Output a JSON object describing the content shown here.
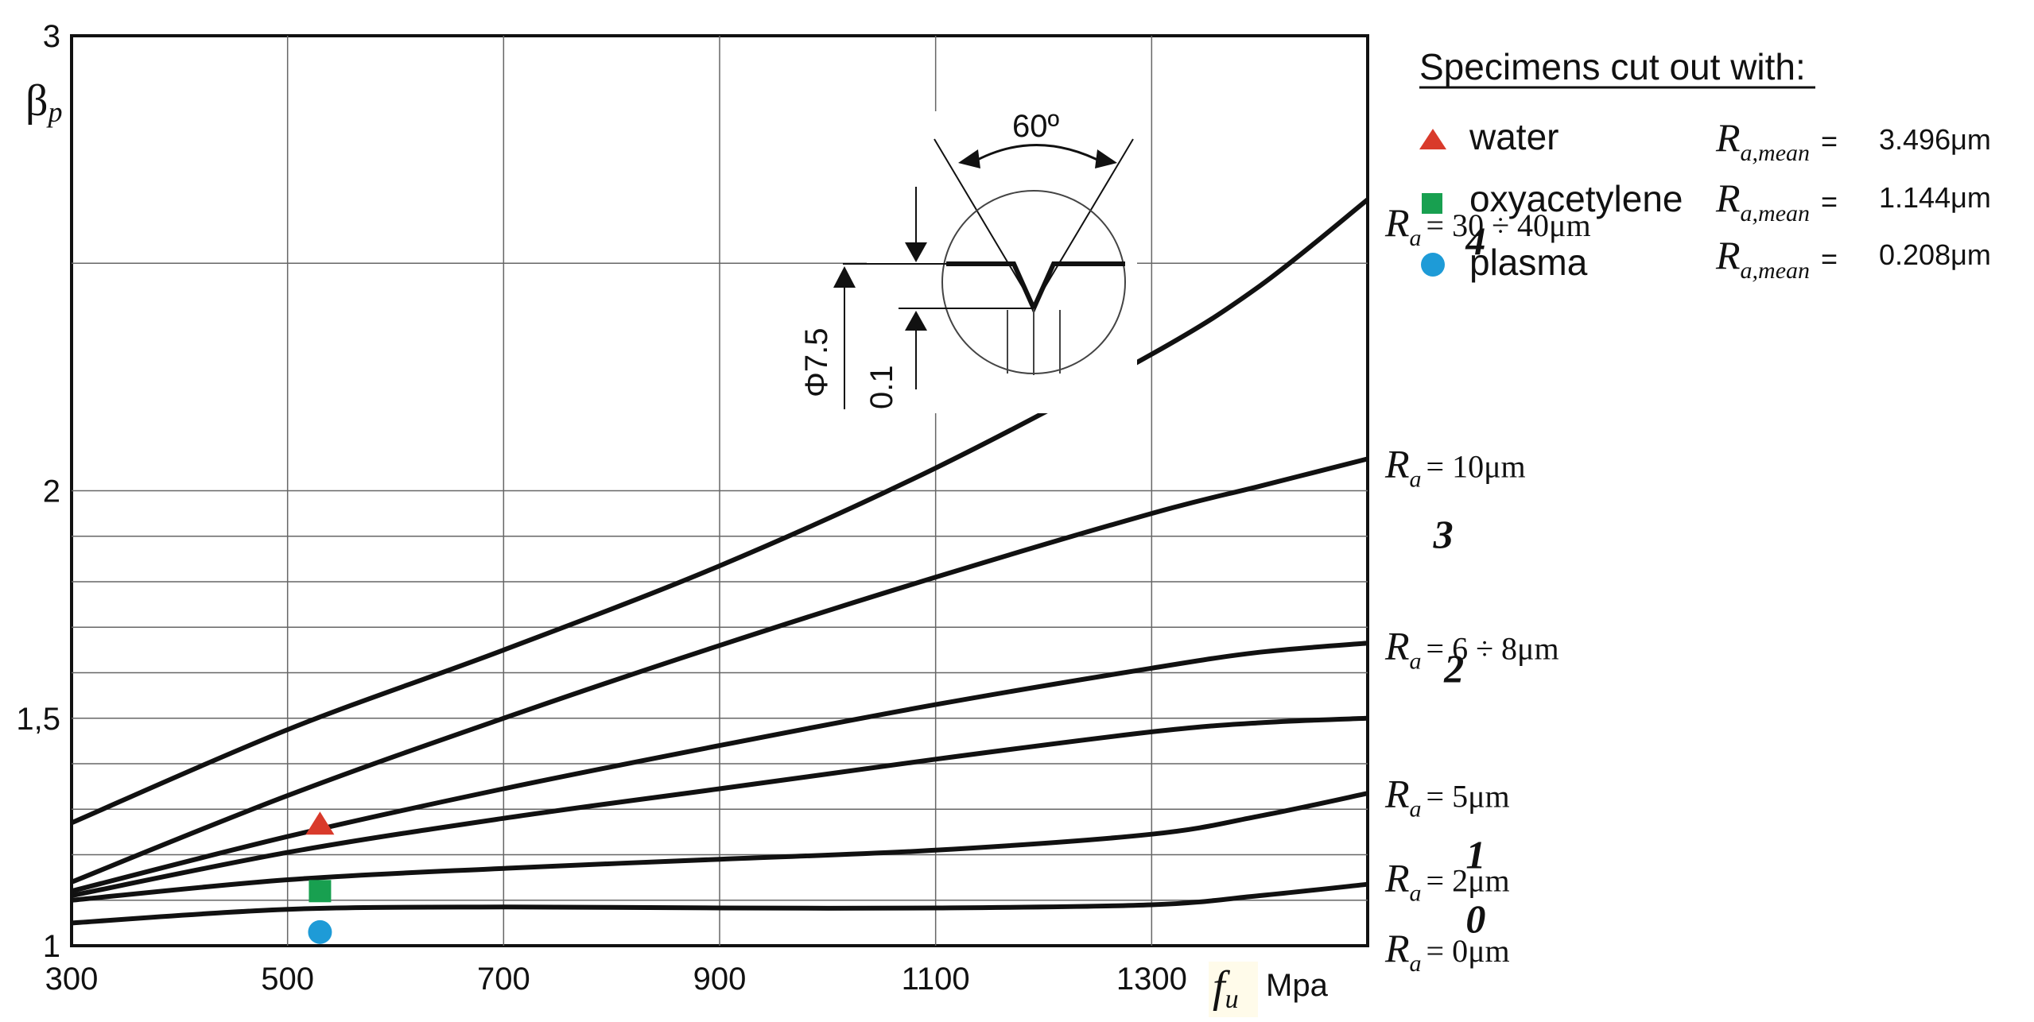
{
  "chart_data": {
    "type": "line",
    "title": "",
    "xlabel": "f_u Mpa",
    "xlabel_symbol": "f",
    "xlabel_sub": "u",
    "xlabel_unit": "Mpa",
    "ylabel": "β_p",
    "ylabel_symbol": "β",
    "ylabel_sub": "p",
    "xlim": [
      300,
      1500
    ],
    "ylim": [
      1,
      3
    ],
    "x_ticks": [
      "300",
      "500",
      "700",
      "900",
      "1100",
      "1300"
    ],
    "y_ticks": [
      {
        "v": 1,
        "label": "1"
      },
      {
        "v": 1.5,
        "label": "1,5"
      },
      {
        "v": 2,
        "label": "2"
      },
      {
        "v": 3,
        "label": "3"
      }
    ],
    "series": [
      {
        "name": "0",
        "label_value": "= 0μm",
        "x": [
          300,
          500,
          700,
          900,
          1100,
          1300,
          1400,
          1500
        ],
        "y": [
          1.05,
          1.08,
          1.085,
          1.083,
          1.083,
          1.09,
          1.11,
          1.135
        ]
      },
      {
        "name": "1",
        "label_value": "= 2μm",
        "x": [
          300,
          500,
          700,
          900,
          1100,
          1300,
          1400,
          1500
        ],
        "y": [
          1.1,
          1.145,
          1.17,
          1.19,
          1.21,
          1.245,
          1.285,
          1.335
        ]
      },
      {
        "name": "",
        "label_value": "= 5μm",
        "x": [
          300,
          500,
          700,
          900,
          1100,
          1300,
          1400,
          1500
        ],
        "y": [
          1.11,
          1.205,
          1.28,
          1.345,
          1.41,
          1.47,
          1.49,
          1.5
        ]
      },
      {
        "name": "2",
        "label_value": "= 6 ÷ 8μm",
        "x": [
          300,
          500,
          700,
          900,
          1100,
          1300,
          1400,
          1500
        ],
        "y": [
          1.12,
          1.24,
          1.345,
          1.44,
          1.53,
          1.61,
          1.645,
          1.665
        ]
      },
      {
        "name": "3",
        "label_value": "= 10μm",
        "x": [
          300,
          500,
          700,
          900,
          1100,
          1300,
          1400,
          1500
        ],
        "y": [
          1.14,
          1.33,
          1.5,
          1.66,
          1.81,
          1.95,
          2.01,
          2.07
        ]
      },
      {
        "name": "4",
        "label_value": "= 30 ÷ 40μm",
        "x": [
          300,
          500,
          700,
          900,
          1100,
          1300,
          1400,
          1500
        ],
        "y": [
          1.27,
          1.475,
          1.65,
          1.835,
          2.05,
          2.3,
          2.45,
          2.64
        ]
      }
    ],
    "curve_label_symbol": "R",
    "curve_label_sub": "a",
    "markers": [
      {
        "name": "water",
        "shape": "triangle",
        "color": "#d93a2b",
        "x": 530,
        "y": 1.265
      },
      {
        "name": "oxyacetylene",
        "shape": "square",
        "color": "#18a050",
        "x": 530,
        "y": 1.12
      },
      {
        "name": "plasma",
        "shape": "circle",
        "color": "#1e9bd7",
        "x": 530,
        "y": 1.03
      }
    ],
    "legend": {
      "title": "Specimens cut out with:",
      "placement": "top-right",
      "ra_symbol": "R",
      "ra_sub": "a,mean",
      "entries": [
        {
          "label": "water",
          "shape": "triangle",
          "color": "#d93a2b",
          "value": "3.496μm"
        },
        {
          "label": "oxyacetylene",
          "shape": "square",
          "color": "#18a050",
          "value": "1.144μm"
        },
        {
          "label": "plasma",
          "shape": "circle",
          "color": "#1e9bd7",
          "value": "0.208μm"
        }
      ]
    },
    "inset": {
      "angle_label": "60º",
      "diameter_label": "Φ7.5",
      "depth_label": "0.1"
    }
  }
}
